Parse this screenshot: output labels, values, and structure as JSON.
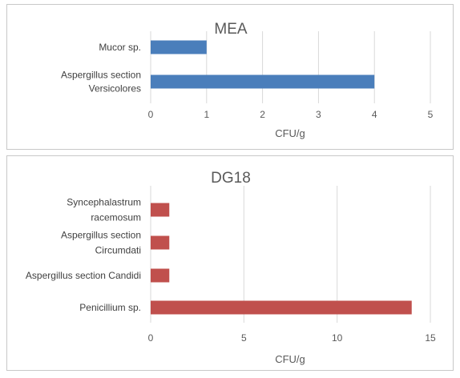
{
  "chart_data": [
    {
      "type": "bar",
      "orientation": "horizontal",
      "title": "MEA",
      "xlabel": "CFU/g",
      "ylabel": "",
      "xlim": [
        0,
        5
      ],
      "ticks": [
        0,
        1,
        2,
        3,
        4,
        5
      ],
      "categories": [
        [
          "Mucor sp."
        ],
        [
          "Aspergillus section",
          "Versicolores"
        ]
      ],
      "values": [
        1,
        4
      ],
      "color": "#4a7ebb",
      "grid": true,
      "legend": "none"
    },
    {
      "type": "bar",
      "orientation": "horizontal",
      "title": "DG18",
      "xlabel": "CFU/g",
      "ylabel": "",
      "xlim": [
        0,
        15
      ],
      "ticks": [
        0,
        5,
        10,
        15
      ],
      "categories": [
        [
          "Syncephalastrum",
          "racemosum"
        ],
        [
          "Aspergillus section",
          "Circumdati"
        ],
        [
          "Aspergillus section Candidi"
        ],
        [
          "Penicillium sp."
        ]
      ],
      "values": [
        1,
        1,
        1,
        14
      ],
      "color": "#c0504d",
      "grid": true,
      "legend": "none"
    }
  ]
}
